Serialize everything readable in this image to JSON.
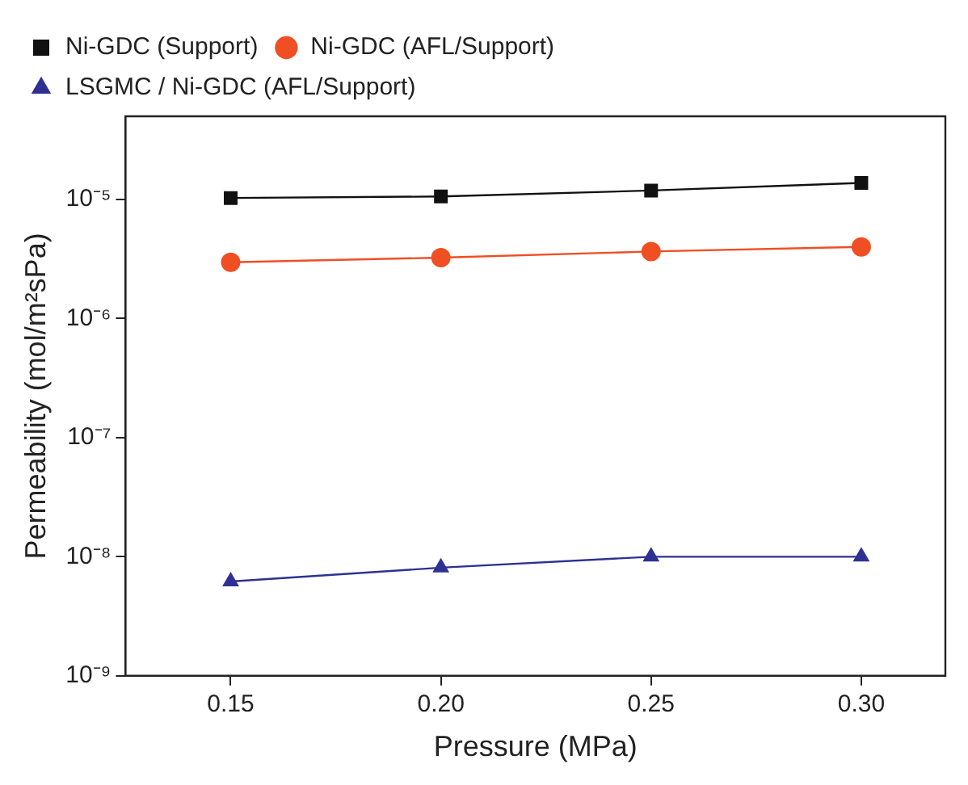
{
  "chart_data": {
    "type": "line",
    "xlabel": "Pressure (MPa)",
    "ylabel": "Permeability (mol/m²sPa)",
    "x": [
      0.15,
      0.2,
      0.25,
      0.3
    ],
    "xlim": [
      0.125,
      0.32
    ],
    "xticks": [
      {
        "value": 0.15,
        "label": "0.15"
      },
      {
        "value": 0.2,
        "label": "0.20"
      },
      {
        "value": 0.25,
        "label": "0.25"
      },
      {
        "value": 0.3,
        "label": "0.30"
      }
    ],
    "log": "y",
    "ylim": [
      1e-09,
      5e-05
    ],
    "yticks": [
      {
        "value": 1e-09,
        "label": "10⁻⁹"
      },
      {
        "value": 1e-08,
        "label": "10⁻⁸"
      },
      {
        "value": 1e-07,
        "label": "10⁻⁷"
      },
      {
        "value": 1e-06,
        "label": "10⁻⁶"
      },
      {
        "value": 1e-05,
        "label": "10⁻⁵"
      }
    ],
    "grid": false,
    "legend": "top",
    "series": [
      {
        "name": "Ni-GDC (Support)",
        "color": "#111111",
        "marker": "square",
        "values": [
          1.03e-05,
          1.06e-05,
          1.19e-05,
          1.38e-05
        ]
      },
      {
        "name": "Ni-GDC (AFL/Support)",
        "color": "#f04e23",
        "marker": "circle",
        "values": [
          2.97e-06,
          3.25e-06,
          3.66e-06,
          4e-06
        ]
      },
      {
        "name": "LSGMC / Ni-GDC (AFL/Support)",
        "color": "#2e3192",
        "marker": "triangle",
        "values": [
          6.2e-09,
          8.1e-09,
          1e-08,
          1e-08
        ]
      }
    ]
  }
}
